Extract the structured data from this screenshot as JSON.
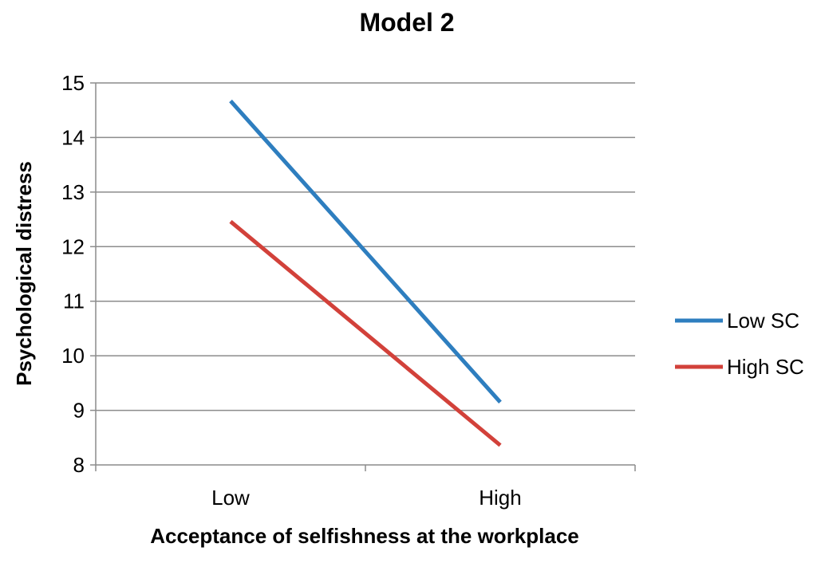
{
  "chart_data": {
    "type": "line",
    "title": "Model 2",
    "xlabel": "Acceptance of selfishness at the workplace",
    "ylabel": "Psychological distress",
    "categories": [
      "Low",
      "High"
    ],
    "ylim": [
      8,
      15
    ],
    "yticks": [
      8,
      9,
      10,
      11,
      12,
      13,
      14,
      15
    ],
    "grid": true,
    "legend_position": "right",
    "series": [
      {
        "name": "Low SC",
        "values": [
          14.67,
          9.15
        ],
        "color": "#2e7ebf"
      },
      {
        "name": "High SC",
        "values": [
          12.46,
          8.36
        ],
        "color": "#d2413a"
      }
    ]
  }
}
